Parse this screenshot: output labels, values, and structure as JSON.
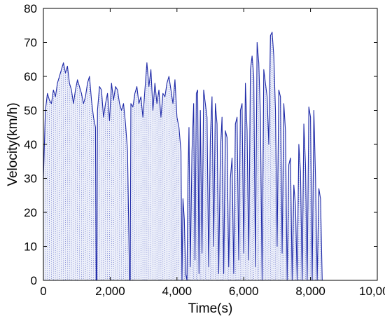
{
  "chart_data": {
    "type": "line",
    "title": "",
    "xlabel": "Time(s)",
    "ylabel": "Velocity(km/h)",
    "xlim": [
      0,
      10000
    ],
    "ylim": [
      0,
      80
    ],
    "xticks": [
      0,
      2000,
      4000,
      6000,
      8000,
      10000
    ],
    "xtick_labels": [
      "0",
      "2,000",
      "4,000",
      "6,000",
      "8,000",
      "10,000"
    ],
    "yticks": [
      0,
      10,
      20,
      30,
      40,
      50,
      60,
      70,
      80
    ],
    "ytick_labels": [
      "0",
      "10",
      "20",
      "30",
      "40",
      "50",
      "60",
      "70",
      "80"
    ],
    "grid": false,
    "drop_lines": true,
    "series": [
      {
        "color": "#1f2aa8",
        "x": [
          0,
          60,
          120,
          180,
          240,
          300,
          360,
          420,
          480,
          540,
          600,
          660,
          720,
          780,
          840,
          900,
          960,
          1020,
          1080,
          1140,
          1200,
          1260,
          1320,
          1380,
          1440,
          1500,
          1560,
          1580,
          1600,
          1620,
          1680,
          1740,
          1800,
          1860,
          1920,
          1980,
          2040,
          2100,
          2160,
          2220,
          2280,
          2340,
          2400,
          2460,
          2520,
          2580,
          2600,
          2620,
          2680,
          2740,
          2800,
          2860,
          2920,
          2980,
          3040,
          3100,
          3160,
          3220,
          3280,
          3340,
          3400,
          3460,
          3520,
          3580,
          3640,
          3700,
          3760,
          3820,
          3880,
          3940,
          4000,
          4060,
          4120,
          4150,
          4180,
          4220,
          4260,
          4300,
          4330,
          4360,
          4400,
          4450,
          4500,
          4540,
          4580,
          4620,
          4660,
          4700,
          4750,
          4800,
          4850,
          4900,
          4950,
          5000,
          5050,
          5100,
          5150,
          5200,
          5250,
          5300,
          5350,
          5400,
          5450,
          5500,
          5550,
          5600,
          5650,
          5700,
          5750,
          5800,
          5850,
          5900,
          5950,
          6000,
          6050,
          6100,
          6150,
          6200,
          6250,
          6300,
          6350,
          6400,
          6450,
          6500,
          6550,
          6600,
          6650,
          6700,
          6750,
          6800,
          6850,
          6900,
          6950,
          7000,
          7050,
          7100,
          7150,
          7200,
          7250,
          7300,
          7350,
          7400,
          7450,
          7500,
          7550,
          7600,
          7650,
          7700,
          7750,
          7800,
          7850,
          7900,
          7950,
          8000,
          8050,
          8100,
          8150,
          8200,
          8250,
          8300,
          8350
        ],
        "y": [
          30,
          50,
          55,
          53,
          52,
          56,
          54,
          58,
          60,
          62,
          64,
          61,
          63,
          58,
          56,
          52,
          56,
          59,
          57,
          55,
          52,
          54,
          58,
          60,
          53,
          48,
          45,
          0,
          0,
          50,
          57,
          56,
          48,
          52,
          55,
          47,
          58,
          53,
          57,
          56,
          52,
          50,
          52,
          46,
          38,
          0,
          0,
          52,
          51,
          55,
          57,
          52,
          54,
          48,
          56,
          64,
          57,
          62,
          50,
          58,
          52,
          56,
          48,
          55,
          54,
          58,
          60,
          56,
          52,
          59,
          48,
          45,
          38,
          0,
          24,
          18,
          2,
          0,
          30,
          45,
          4,
          38,
          52,
          6,
          55,
          56,
          2,
          50,
          8,
          56,
          52,
          48,
          4,
          42,
          54,
          10,
          52,
          46,
          2,
          38,
          48,
          2,
          44,
          42,
          4,
          30,
          36,
          2,
          46,
          48,
          6,
          50,
          52,
          8,
          58,
          44,
          6,
          62,
          66,
          60,
          4,
          70,
          64,
          48,
          0,
          62,
          58,
          54,
          40,
          72,
          73,
          66,
          50,
          10,
          56,
          54,
          8,
          52,
          44,
          0,
          34,
          36,
          0,
          28,
          22,
          0,
          40,
          32,
          0,
          46,
          34,
          0,
          51,
          48,
          0,
          50,
          30,
          0,
          27,
          24,
          0
        ]
      }
    ]
  }
}
